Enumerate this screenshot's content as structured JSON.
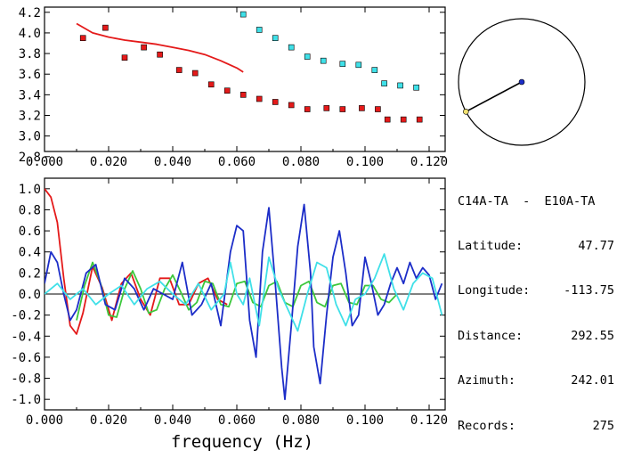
{
  "station_pair": "C14A-TA  -  E10A-TA",
  "info": [
    {
      "label": "Latitude:",
      "value": "47.77"
    },
    {
      "label": "Longitude:",
      "value": "-113.75"
    },
    {
      "label": "Distance:",
      "value": "292.55"
    },
    {
      "label": "Azimuth:",
      "value": "242.01"
    },
    {
      "label": "Records:",
      "value": "275"
    }
  ],
  "colors": {
    "red": "#e41a1a",
    "cyan": "#3fe0e8",
    "blue": "#1c2dc8",
    "green": "#3cc83c"
  },
  "chart_data": [
    {
      "type": "scatter",
      "title": "",
      "xlabel": "",
      "ylabel": "",
      "xlim": [
        0.0,
        0.125
      ],
      "ylim": [
        2.85,
        4.25
      ],
      "xticks": [
        "0.000",
        "0.020",
        "0.040",
        "0.060",
        "0.080",
        "0.100",
        "0.120"
      ],
      "yticks": [
        "2.8",
        "3.0",
        "3.2",
        "3.4",
        "3.6",
        "3.8",
        "4.0",
        "4.2"
      ],
      "series": [
        {
          "color": "red",
          "marker": "square",
          "x": [
            0.012,
            0.019,
            0.025,
            0.031,
            0.036,
            0.042,
            0.047,
            0.052,
            0.057,
            0.062,
            0.067,
            0.072,
            0.077,
            0.082,
            0.088,
            0.093,
            0.099,
            0.104,
            0.107,
            0.112,
            0.117
          ],
          "y": [
            3.95,
            4.05,
            3.76,
            3.86,
            3.79,
            3.64,
            3.61,
            3.5,
            3.44,
            3.4,
            3.36,
            3.33,
            3.3,
            3.26,
            3.27,
            3.26,
            3.27,
            3.26,
            3.16,
            3.16,
            3.16
          ]
        },
        {
          "color": "cyan",
          "marker": "square",
          "x": [
            0.062,
            0.067,
            0.072,
            0.077,
            0.082,
            0.087,
            0.093,
            0.098,
            0.103,
            0.106,
            0.111,
            0.116
          ],
          "y": [
            4.18,
            4.03,
            3.95,
            3.86,
            3.77,
            3.73,
            3.7,
            3.69,
            3.64,
            3.51,
            3.49,
            3.47
          ]
        },
        {
          "color": "red",
          "marker": "line",
          "x": [
            0.01,
            0.015,
            0.02,
            0.025,
            0.03,
            0.035,
            0.04,
            0.045,
            0.05,
            0.055,
            0.06,
            0.062
          ],
          "y": [
            4.09,
            4.0,
            3.96,
            3.93,
            3.91,
            3.89,
            3.86,
            3.83,
            3.79,
            3.73,
            3.66,
            3.62
          ]
        }
      ]
    },
    {
      "type": "line",
      "title": "",
      "xlabel": "frequency (Hz)",
      "ylabel": "",
      "xlim": [
        0.0,
        0.125
      ],
      "ylim": [
        -1.1,
        1.1
      ],
      "xticks": [
        "0.000",
        "0.020",
        "0.040",
        "0.060",
        "0.080",
        "0.100",
        "0.120"
      ],
      "yticks": [
        "-1.0",
        "-0.8",
        "-0.6",
        "-0.4",
        "-0.2",
        "0.0",
        "0.2",
        "0.4",
        "0.6",
        "0.8",
        "1.0"
      ],
      "series": [
        {
          "color": "red",
          "x": [
            0.0,
            0.002,
            0.004,
            0.006,
            0.008,
            0.01,
            0.012,
            0.015,
            0.018,
            0.021,
            0.024,
            0.027,
            0.03,
            0.033,
            0.036,
            0.039,
            0.042,
            0.045,
            0.048,
            0.051,
            0.054,
            0.057
          ],
          "y": [
            1.0,
            0.92,
            0.68,
            0.15,
            -0.3,
            -0.38,
            -0.18,
            0.26,
            0.06,
            -0.25,
            0.1,
            0.2,
            -0.05,
            -0.2,
            0.15,
            0.15,
            -0.1,
            -0.1,
            0.1,
            0.15,
            -0.05,
            -0.1
          ]
        },
        {
          "color": "green",
          "x": [
            0.01,
            0.0125,
            0.015,
            0.0175,
            0.02,
            0.0225,
            0.025,
            0.0275,
            0.03,
            0.0325,
            0.035,
            0.0375,
            0.04,
            0.0425,
            0.045,
            0.0475,
            0.05,
            0.0525,
            0.055,
            0.0575,
            0.06,
            0.0625,
            0.065,
            0.0675,
            0.07,
            0.0725,
            0.075,
            0.0775,
            0.08,
            0.0825,
            0.085,
            0.0875,
            0.09,
            0.0925,
            0.095,
            0.0975,
            0.1,
            0.1025,
            0.105,
            0.1075,
            0.11
          ],
          "y": [
            -0.25,
            0.08,
            0.3,
            0.1,
            -0.2,
            -0.22,
            0.05,
            0.22,
            0.05,
            -0.18,
            -0.15,
            0.05,
            0.18,
            0.02,
            -0.15,
            -0.08,
            0.12,
            0.1,
            -0.1,
            -0.12,
            0.1,
            0.12,
            -0.08,
            -0.12,
            0.08,
            0.12,
            -0.08,
            -0.12,
            0.08,
            0.12,
            -0.08,
            -0.12,
            0.08,
            0.1,
            -0.08,
            -0.1,
            0.08,
            0.08,
            -0.05,
            -0.08,
            0.0
          ]
        },
        {
          "color": "blue",
          "x": [
            0.0,
            0.002,
            0.004,
            0.006,
            0.008,
            0.01,
            0.013,
            0.016,
            0.019,
            0.022,
            0.025,
            0.028,
            0.031,
            0.034,
            0.037,
            0.04,
            0.043,
            0.046,
            0.049,
            0.052,
            0.055,
            0.058,
            0.06,
            0.062,
            0.064,
            0.066,
            0.068,
            0.07,
            0.072,
            0.074,
            0.075,
            0.077,
            0.079,
            0.081,
            0.083,
            0.084,
            0.086,
            0.088,
            0.09,
            0.092,
            0.094,
            0.096,
            0.098,
            0.1,
            0.102,
            0.104,
            0.106,
            0.108,
            0.11,
            0.112,
            0.114,
            0.116,
            0.118,
            0.12,
            0.122,
            0.124
          ],
          "y": [
            0.1,
            0.4,
            0.3,
            0.0,
            -0.25,
            -0.15,
            0.2,
            0.28,
            -0.1,
            -0.15,
            0.15,
            0.05,
            -0.15,
            0.05,
            0.0,
            -0.05,
            0.3,
            -0.2,
            -0.1,
            0.1,
            -0.3,
            0.4,
            0.65,
            0.6,
            -0.25,
            -0.6,
            0.4,
            0.82,
            0.1,
            -0.7,
            -1.0,
            -0.3,
            0.45,
            0.85,
            0.2,
            -0.5,
            -0.85,
            -0.2,
            0.35,
            0.6,
            0.2,
            -0.3,
            -0.2,
            0.35,
            0.1,
            -0.2,
            -0.1,
            0.1,
            0.25,
            0.1,
            0.3,
            0.15,
            0.25,
            0.18,
            -0.05,
            0.1
          ]
        },
        {
          "color": "cyan",
          "x": [
            0.0,
            0.004,
            0.008,
            0.012,
            0.016,
            0.02,
            0.024,
            0.028,
            0.032,
            0.036,
            0.04,
            0.044,
            0.048,
            0.052,
            0.056,
            0.058,
            0.06,
            0.062,
            0.064,
            0.067,
            0.07,
            0.073,
            0.076,
            0.079,
            0.082,
            0.085,
            0.088,
            0.091,
            0.094,
            0.097,
            0.1,
            0.103,
            0.106,
            0.109,
            0.112,
            0.115,
            0.118,
            0.121,
            0.124
          ],
          "y": [
            0.0,
            0.1,
            -0.05,
            0.05,
            -0.1,
            0.0,
            0.08,
            -0.1,
            0.05,
            0.12,
            0.0,
            -0.1,
            0.1,
            -0.15,
            0.0,
            0.3,
            0.0,
            -0.1,
            0.15,
            -0.3,
            0.35,
            0.05,
            -0.15,
            -0.35,
            0.0,
            0.3,
            0.25,
            -0.1,
            -0.3,
            -0.05,
            0.0,
            0.15,
            0.38,
            0.05,
            -0.15,
            0.1,
            0.2,
            0.15,
            -0.2
          ]
        }
      ]
    }
  ],
  "azimuth_dial": {
    "azimuth_deg": 242.01
  }
}
